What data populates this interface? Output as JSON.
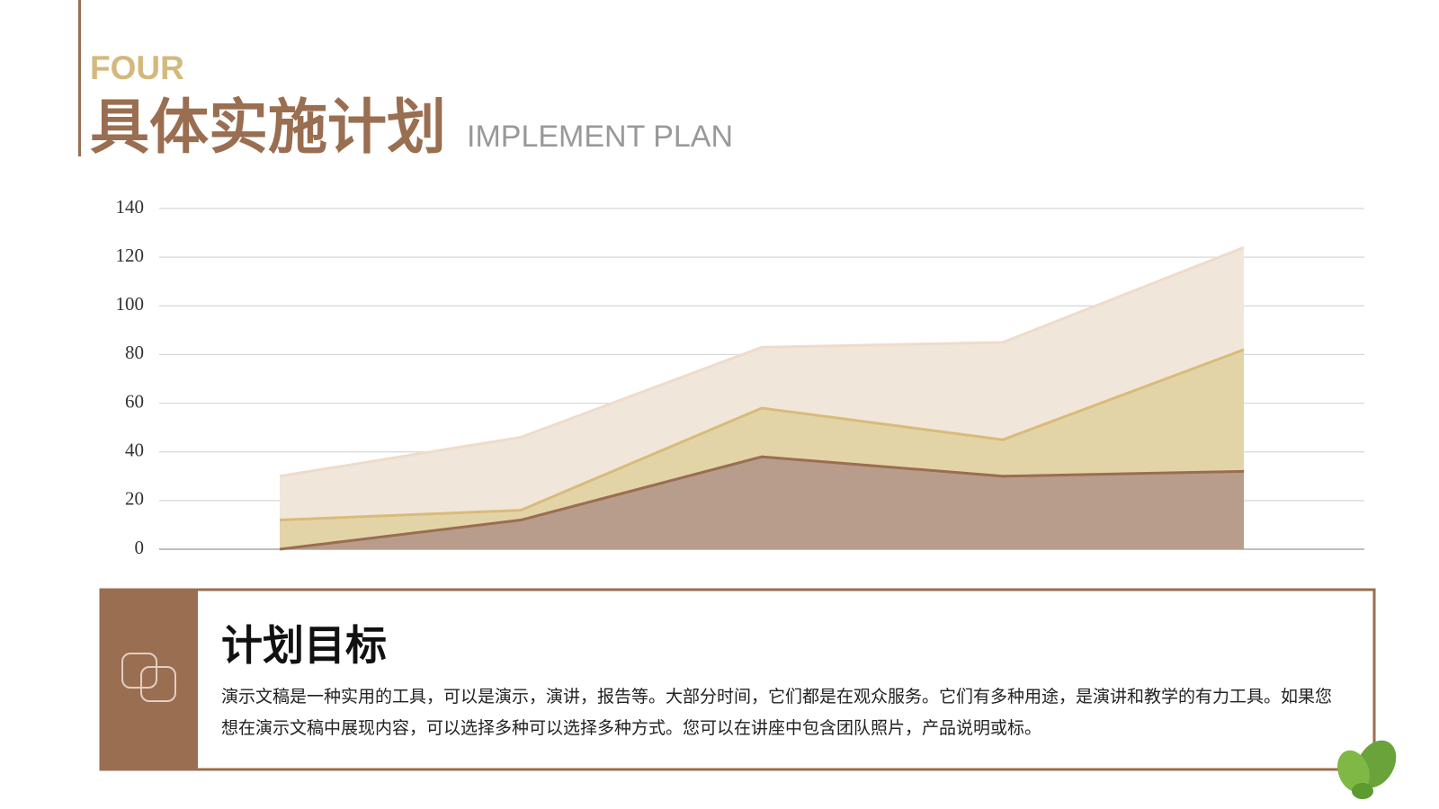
{
  "header": {
    "label": "FOUR",
    "title": "具体实施计划",
    "subtitle": "IMPLEMENT PLAN"
  },
  "chart_data": {
    "type": "area",
    "categories": [
      null,
      null,
      null,
      null,
      null
    ],
    "series": [
      {
        "color": "#f1e6da",
        "line_color": "#eedcca",
        "values": [
          30,
          46,
          83,
          85,
          124
        ]
      },
      {
        "color": "#e3d4a8",
        "line_color": "#d9bb7a",
        "values": [
          12,
          16,
          58,
          45,
          82
        ]
      },
      {
        "color": "#b89c8c",
        "line_color": "#9a6e50",
        "values": [
          0,
          12,
          38,
          30,
          32
        ]
      }
    ],
    "ylim": [
      0,
      140
    ],
    "yticks": [
      0,
      20,
      40,
      60,
      80,
      100,
      120,
      140
    ],
    "grid": true
  },
  "panel": {
    "title": "计划目标",
    "text": "演示文稿是一种实用的工具，可以是演示，演讲，报告等。大部分时间，它们都是在观众服务。它们有多种用途，是演讲和教学的有力工具。如果您想在演示文稿中展现内容，可以选择多种可以选择多种方式。您可以在讲座中包含团队照片，产品说明或标。"
  }
}
